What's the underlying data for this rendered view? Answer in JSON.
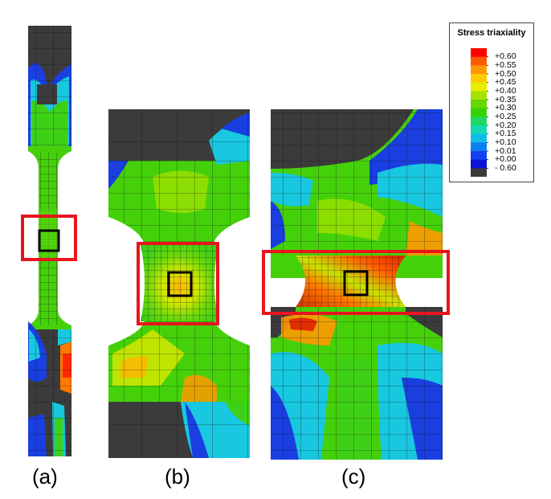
{
  "legend": {
    "title": "Stress triaxiality",
    "colors": [
      "#ff0000",
      "#ff5a00",
      "#ff9800",
      "#ffcc00",
      "#e8ee00",
      "#a6e400",
      "#64d800",
      "#34d400",
      "#1ed860",
      "#14d8b4",
      "#12bce4",
      "#0a80ee",
      "#1240f0",
      "#0a14d8",
      "#3b3b3b"
    ],
    "labels": [
      "+0.60",
      "+0.55",
      "+0.50",
      "+0.45",
      "+0.40",
      "+0.35",
      "+0.30",
      "+0.25",
      "+0.20",
      "+0.15",
      "+0.10",
      "+0.01",
      "+0.00",
      "- 0.60"
    ]
  },
  "panels": [
    {
      "label": "(a)"
    },
    {
      "label": "(b)"
    },
    {
      "label": "(c)"
    }
  ],
  "colors": {
    "highlight_box": "#e8141e",
    "mesh_line": "#111111",
    "undeformed": "#3b3b3b",
    "base_field": "#45d10a"
  }
}
